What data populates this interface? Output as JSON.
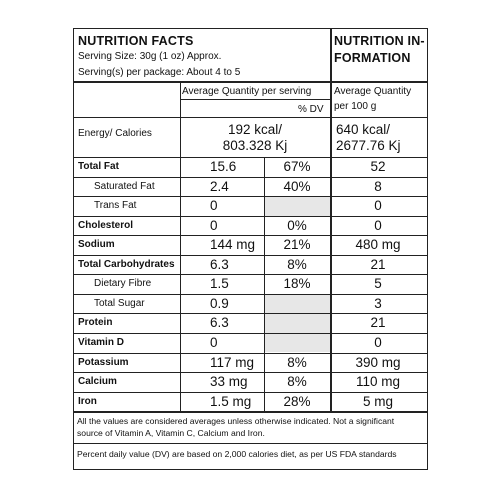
{
  "header": {
    "title_left": "NUTRITION FACTS",
    "serving_size": "Serving Size: 30g (1 oz) Approx.",
    "servings_per_package": "Serving(s) per package: About 4 to 5",
    "title_right_line1": "NUTRITION IN-",
    "title_right_line2": "FORMATION"
  },
  "columns": {
    "avg_per_serving": "Average Quantity per serving",
    "pct_dv": "% DV",
    "avg_per_100g_line1": "Average Quantity",
    "avg_per_100g_line2": "per 100 g"
  },
  "energy": {
    "label": "Energy/ Calories",
    "serving_line1": "192 kcal/",
    "serving_line2": "803.328 Kj",
    "per100_line1": "640 kcal/",
    "per100_line2": "2677.76 Kj"
  },
  "rows": [
    {
      "label": "Total Fat",
      "serving": "15.6",
      "dv": "67%",
      "per100": "52"
    },
    {
      "label": "Saturated Fat",
      "serving": "2.4",
      "dv": "40%",
      "per100": "8"
    },
    {
      "label": "Trans Fat",
      "serving": "0",
      "dv": "",
      "per100": "0"
    },
    {
      "label": "Cholesterol",
      "serving": "0",
      "dv": "0%",
      "per100": "0"
    },
    {
      "label": "Sodium",
      "serving": "144 mg",
      "dv": "21%",
      "per100": "480 mg"
    },
    {
      "label": "Total Carbohydrates",
      "serving": "6.3",
      "dv": "8%",
      "per100": "21"
    },
    {
      "label": "Dietary Fibre",
      "serving": "1.5",
      "dv": "18%",
      "per100": "5"
    },
    {
      "label": "Total Sugar",
      "serving": "0.9",
      "dv": "",
      "per100": "3"
    },
    {
      "label": "Protein",
      "serving": "6.3",
      "dv": "",
      "per100": "21"
    },
    {
      "label": "Vitamin D",
      "serving": "0",
      "dv": "",
      "per100": "0"
    },
    {
      "label": "Potassium",
      "serving": "117 mg",
      "dv": "8%",
      "per100": "390 mg"
    },
    {
      "label": "Calcium",
      "serving": "33 mg",
      "dv": "8%",
      "per100": "110 mg"
    },
    {
      "label": "Iron",
      "serving": "1.5 mg",
      "dv": "28%",
      "per100": "5 mg"
    }
  ],
  "footnotes": {
    "averages": "All the values are considered averages unless otherwise indicated. Not a significant source of Vitamin A, Vitamin C, Calcium and Iron.",
    "dv_basis": "Percent daily value (DV) are based on 2,000 calories diet, as per US FDA standards"
  }
}
